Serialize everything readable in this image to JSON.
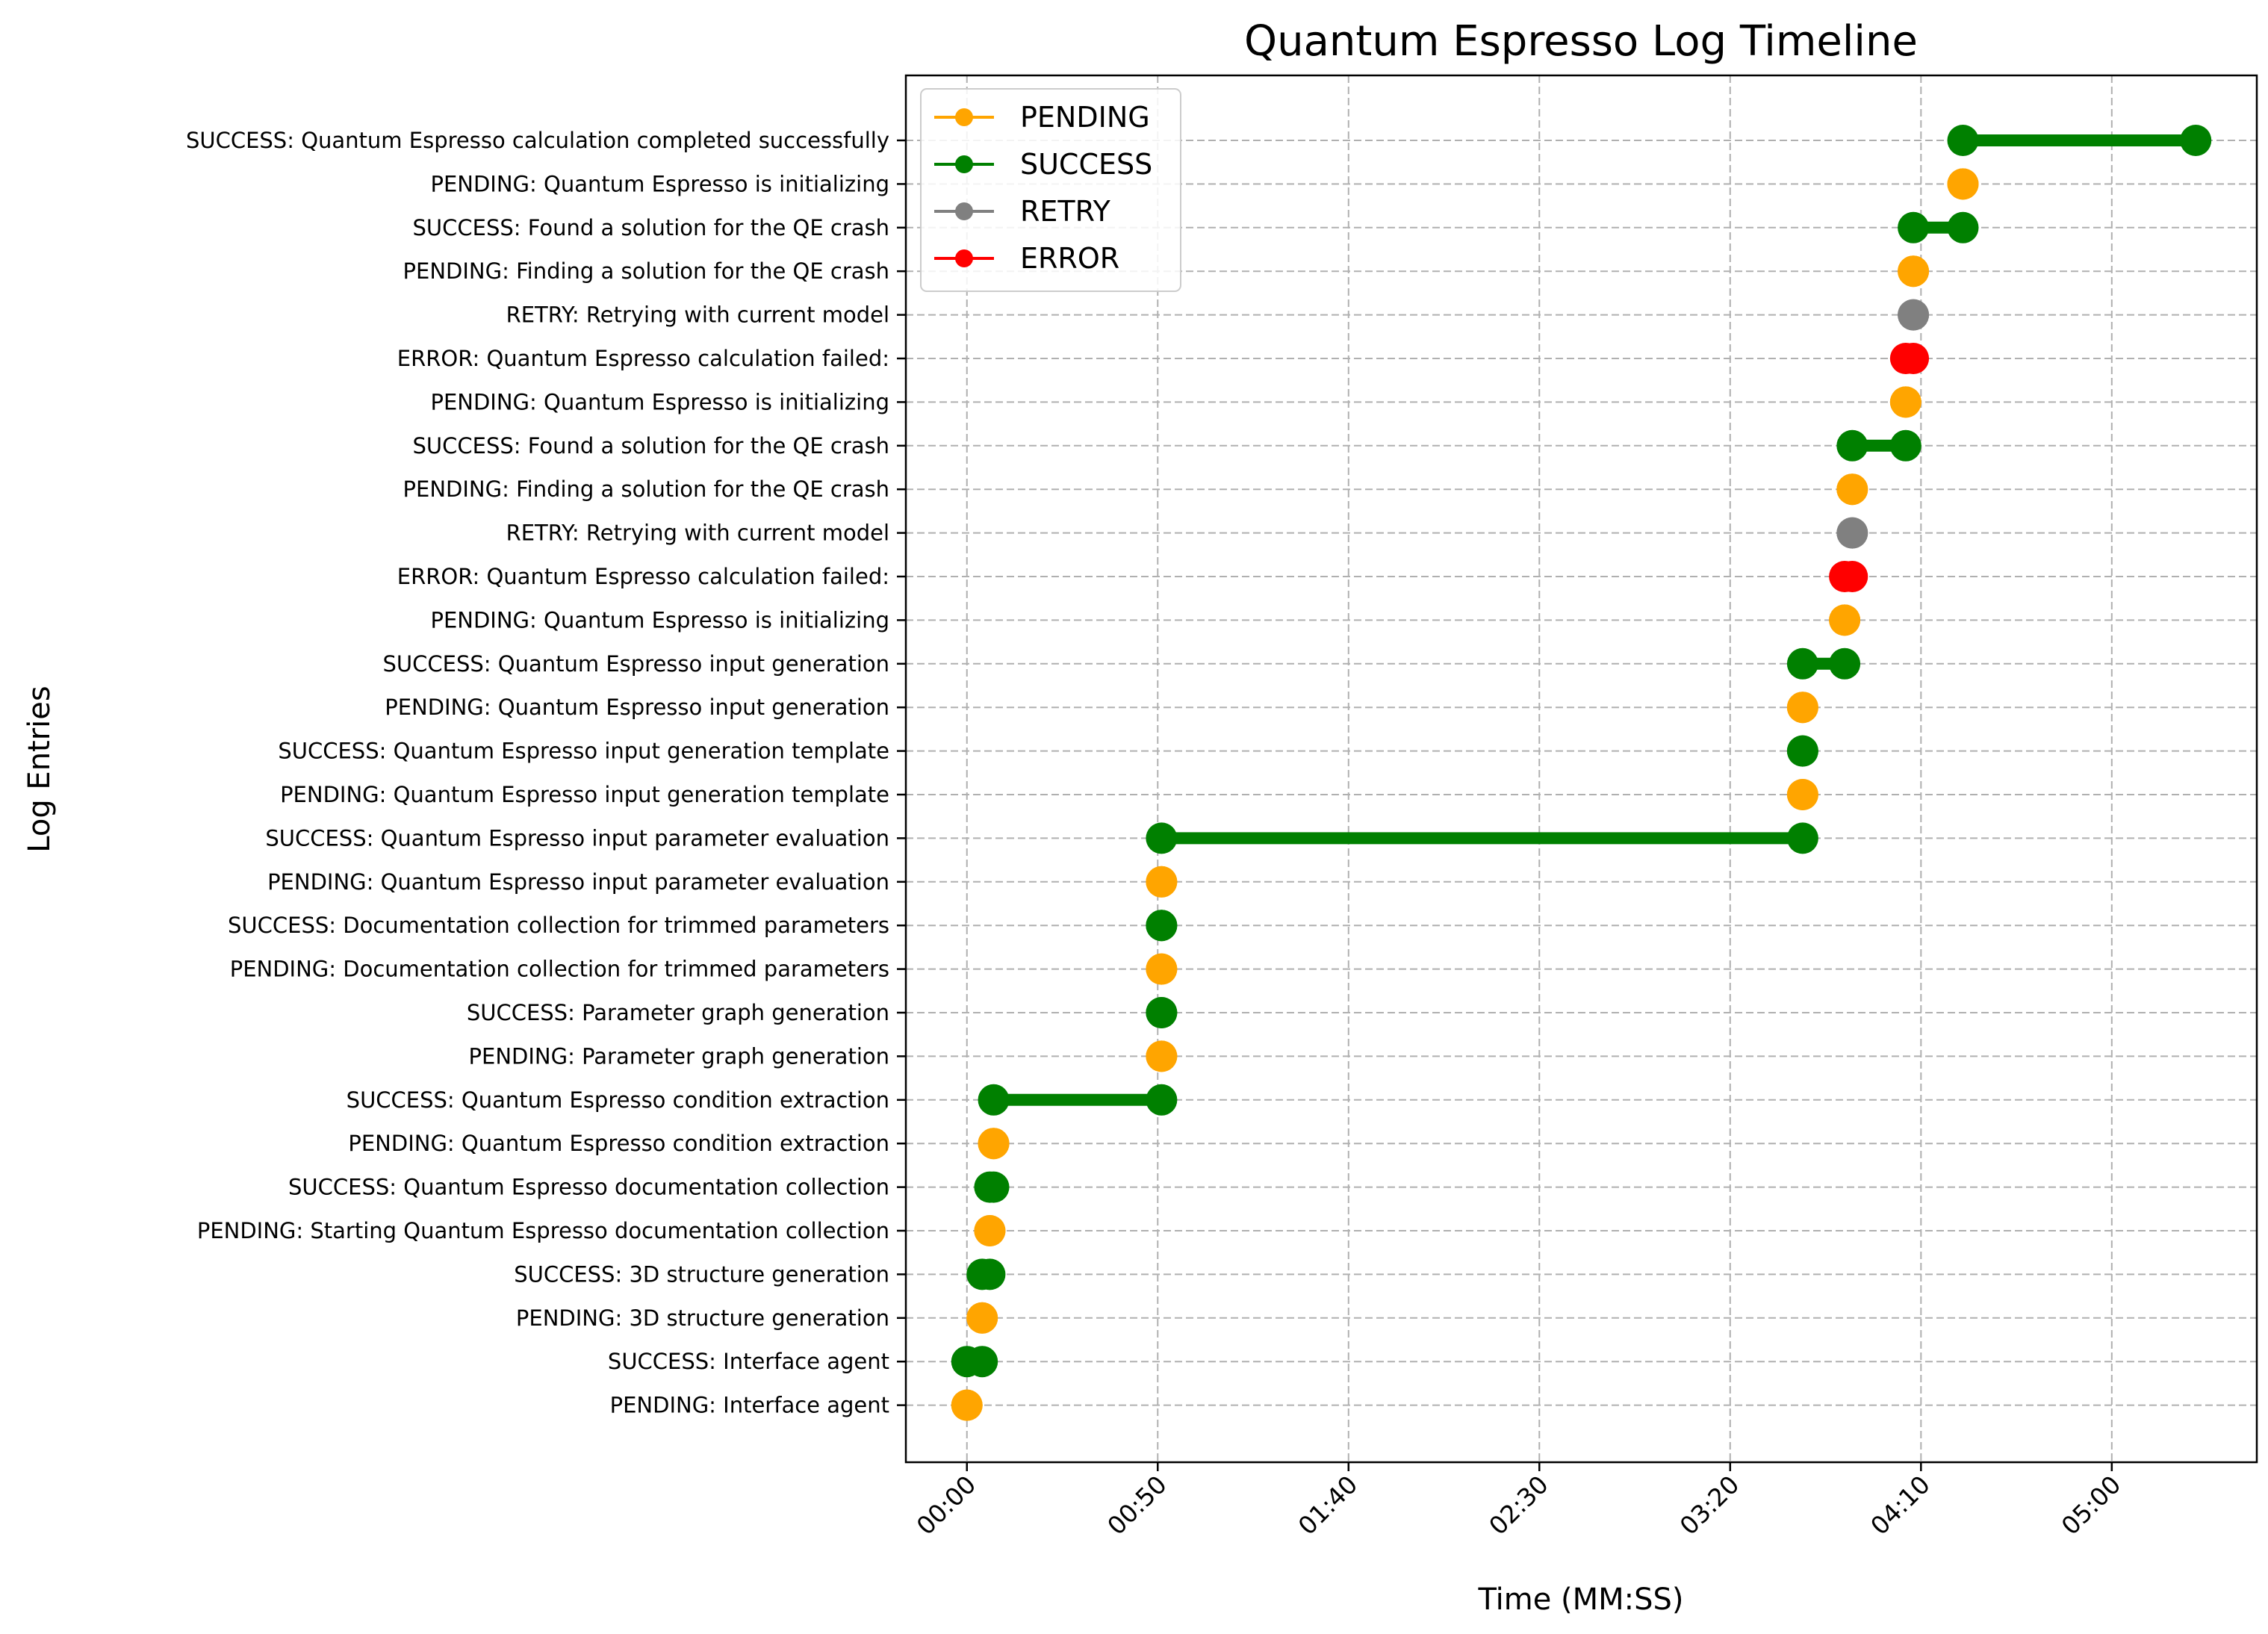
{
  "chart_data": {
    "type": "timeline",
    "title": "Quantum Espresso Log Timeline",
    "xlabel": "Time (MM:SS)",
    "ylabel": "Log Entries",
    "x_unit": "seconds",
    "xlim": [
      -16,
      338
    ],
    "x_ticks": [
      {
        "value": 0,
        "label": "00:00"
      },
      {
        "value": 50,
        "label": "00:50"
      },
      {
        "value": 100,
        "label": "01:40"
      },
      {
        "value": 150,
        "label": "02:30"
      },
      {
        "value": 200,
        "label": "03:20"
      },
      {
        "value": 250,
        "label": "04:10"
      },
      {
        "value": 300,
        "label": "05:00"
      }
    ],
    "grid": true,
    "legend": {
      "placement": "top-left",
      "entries": [
        {
          "name": "PENDING",
          "color": "#FFA500"
        },
        {
          "name": "SUCCESS",
          "color": "#008000"
        },
        {
          "name": "RETRY",
          "color": "#808080"
        },
        {
          "name": "ERROR",
          "color": "#FF0000"
        }
      ]
    },
    "colors": {
      "PENDING": "#FFA500",
      "SUCCESS": "#008000",
      "RETRY": "#808080",
      "ERROR": "#FF0000"
    },
    "entries": [
      {
        "label": "PENDING: Interface agent",
        "status": "PENDING",
        "start": 0,
        "end": 0
      },
      {
        "label": "SUCCESS: Interface agent",
        "status": "SUCCESS",
        "start": 0,
        "end": 4
      },
      {
        "label": "PENDING: 3D structure generation",
        "status": "PENDING",
        "start": 4,
        "end": 4
      },
      {
        "label": "SUCCESS: 3D structure generation",
        "status": "SUCCESS",
        "start": 4,
        "end": 6
      },
      {
        "label": "PENDING: Starting Quantum Espresso documentation collection",
        "status": "PENDING",
        "start": 6,
        "end": 6
      },
      {
        "label": "SUCCESS: Quantum Espresso documentation collection",
        "status": "SUCCESS",
        "start": 6,
        "end": 7
      },
      {
        "label": "PENDING: Quantum Espresso condition extraction",
        "status": "PENDING",
        "start": 7,
        "end": 7
      },
      {
        "label": "SUCCESS: Quantum Espresso condition extraction",
        "status": "SUCCESS",
        "start": 7,
        "end": 51
      },
      {
        "label": "PENDING: Parameter graph generation",
        "status": "PENDING",
        "start": 51,
        "end": 51
      },
      {
        "label": "SUCCESS: Parameter graph generation",
        "status": "SUCCESS",
        "start": 51,
        "end": 51
      },
      {
        "label": "PENDING: Documentation collection for trimmed parameters",
        "status": "PENDING",
        "start": 51,
        "end": 51
      },
      {
        "label": "SUCCESS: Documentation collection for trimmed parameters",
        "status": "SUCCESS",
        "start": 51,
        "end": 51
      },
      {
        "label": "PENDING: Quantum Espresso input parameter evaluation",
        "status": "PENDING",
        "start": 51,
        "end": 51
      },
      {
        "label": "SUCCESS: Quantum Espresso input parameter evaluation",
        "status": "SUCCESS",
        "start": 51,
        "end": 219
      },
      {
        "label": "PENDING: Quantum Espresso input generation template",
        "status": "PENDING",
        "start": 219,
        "end": 219
      },
      {
        "label": "SUCCESS: Quantum Espresso input generation template",
        "status": "SUCCESS",
        "start": 219,
        "end": 219
      },
      {
        "label": "PENDING: Quantum Espresso input generation",
        "status": "PENDING",
        "start": 219,
        "end": 219
      },
      {
        "label": "SUCCESS: Quantum Espresso input generation",
        "status": "SUCCESS",
        "start": 219,
        "end": 230
      },
      {
        "label": "PENDING: Quantum Espresso is initializing",
        "status": "PENDING",
        "start": 230,
        "end": 230
      },
      {
        "label": "ERROR: Quantum Espresso calculation failed: ",
        "status": "ERROR",
        "start": 230,
        "end": 232
      },
      {
        "label": "RETRY: Retrying with current model",
        "status": "RETRY",
        "start": 232,
        "end": 232
      },
      {
        "label": "PENDING: Finding a solution for the QE crash",
        "status": "PENDING",
        "start": 232,
        "end": 232
      },
      {
        "label": "SUCCESS: Found a solution for the QE crash",
        "status": "SUCCESS",
        "start": 232,
        "end": 246
      },
      {
        "label": "PENDING: Quantum Espresso is initializing",
        "status": "PENDING",
        "start": 246,
        "end": 246
      },
      {
        "label": "ERROR: Quantum Espresso calculation failed: ",
        "status": "ERROR",
        "start": 246,
        "end": 248
      },
      {
        "label": "RETRY: Retrying with current model",
        "status": "RETRY",
        "start": 248,
        "end": 248
      },
      {
        "label": "PENDING: Finding a solution for the QE crash",
        "status": "PENDING",
        "start": 248,
        "end": 248
      },
      {
        "label": "SUCCESS: Found a solution for the QE crash",
        "status": "SUCCESS",
        "start": 248,
        "end": 261
      },
      {
        "label": "PENDING: Quantum Espresso is initializing",
        "status": "PENDING",
        "start": 261,
        "end": 261
      },
      {
        "label": "SUCCESS: Quantum Espresso calculation completed successfully",
        "status": "SUCCESS",
        "start": 261,
        "end": 322
      }
    ]
  }
}
